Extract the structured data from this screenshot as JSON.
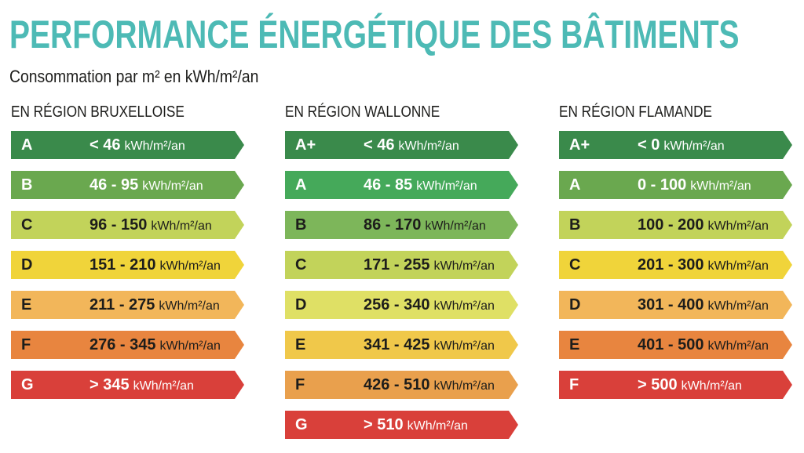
{
  "title": "PERFORMANCE ÉNERGÉTIQUE DES BÂTIMENTS",
  "subtitle": "Consommation par m² en kWh/m²/an",
  "unit": "kWh/m²/an",
  "columns": [
    {
      "heading": "EN RÉGION BRUXELLOISE",
      "bands": [
        {
          "class": "A",
          "range": "< 46",
          "color": "#3a8a4b",
          "text_color": "#ffffff"
        },
        {
          "class": "B",
          "range": "46 - 95",
          "color": "#6aa84f",
          "text_color": "#ffffff"
        },
        {
          "class": "C",
          "range": "96 - 150",
          "color": "#c2d35a",
          "text_color": "#1d1d1b"
        },
        {
          "class": "D",
          "range": "151 - 210",
          "color": "#f0d43a",
          "text_color": "#1d1d1b"
        },
        {
          "class": "E",
          "range": "211 - 275",
          "color": "#f2b65a",
          "text_color": "#1d1d1b"
        },
        {
          "class": "F",
          "range": "276 - 345",
          "color": "#e8853f",
          "text_color": "#1d1d1b"
        },
        {
          "class": "G",
          "range": "> 345",
          "color": "#d9403a",
          "text_color": "#ffffff"
        }
      ]
    },
    {
      "heading": "EN RÉGION WALLONNE",
      "bands": [
        {
          "class": "A+",
          "range": "< 46",
          "color": "#3a8a4b",
          "text_color": "#ffffff"
        },
        {
          "class": "A",
          "range": "46 - 85",
          "color": "#45a95a",
          "text_color": "#ffffff"
        },
        {
          "class": "B",
          "range": "86 - 170",
          "color": "#7db65a",
          "text_color": "#1d1d1b"
        },
        {
          "class": "C",
          "range": "171 - 255",
          "color": "#c2d35a",
          "text_color": "#1d1d1b"
        },
        {
          "class": "D",
          "range": "256 - 340",
          "color": "#dfe065",
          "text_color": "#1d1d1b"
        },
        {
          "class": "E",
          "range": "341 - 425",
          "color": "#f0c84a",
          "text_color": "#1d1d1b"
        },
        {
          "class": "F",
          "range": "426 - 510",
          "color": "#e9a04d",
          "text_color": "#1d1d1b"
        },
        {
          "class": "G",
          "range": "> 510",
          "color": "#d9403a",
          "text_color": "#ffffff"
        }
      ]
    },
    {
      "heading": "EN RÉGION FLAMANDE",
      "bands": [
        {
          "class": "A+",
          "range": "< 0",
          "color": "#3a8a4b",
          "text_color": "#ffffff"
        },
        {
          "class": "A",
          "range": "0 - 100",
          "color": "#6aa84f",
          "text_color": "#ffffff"
        },
        {
          "class": "B",
          "range": "100 - 200",
          "color": "#c2d35a",
          "text_color": "#1d1d1b"
        },
        {
          "class": "C",
          "range": "201 - 300",
          "color": "#f0d43a",
          "text_color": "#1d1d1b"
        },
        {
          "class": "D",
          "range": "301 - 400",
          "color": "#f2b65a",
          "text_color": "#1d1d1b"
        },
        {
          "class": "E",
          "range": "401 - 500",
          "color": "#e8853f",
          "text_color": "#1d1d1b"
        },
        {
          "class": "F",
          "range": "> 500",
          "color": "#d9403a",
          "text_color": "#ffffff"
        }
      ]
    }
  ]
}
